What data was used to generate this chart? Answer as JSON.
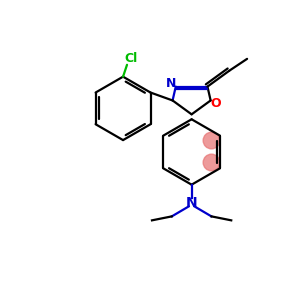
{
  "background_color": "#ffffff",
  "atom_colors": {
    "N": "#0000cc",
    "O": "#ff0000",
    "Cl": "#00bb00",
    "C": "#000000"
  },
  "bond_color": "#000000",
  "highlight_color": "#e87878",
  "figsize": [
    3.0,
    3.0
  ],
  "dpi": 100,
  "lw": 1.6,
  "highlight_size": 12
}
